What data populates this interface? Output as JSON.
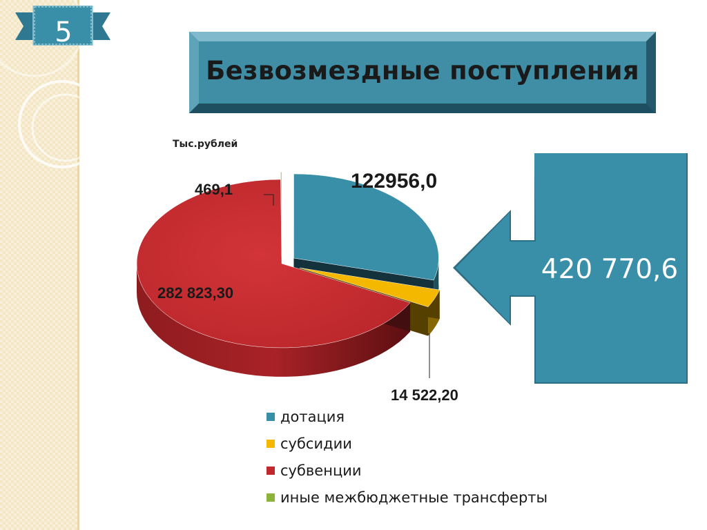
{
  "slide": {
    "number": "5",
    "title": "Безвозмездные  поступления",
    "units": "Тыс.рублей",
    "total": "420 770,6"
  },
  "colors": {
    "ribbon": "#3a8fa8",
    "title_box": "#3f8ea6",
    "arrow": "#3a8fa8"
  },
  "chart_data": {
    "type": "pie",
    "title": "",
    "units": "Тыс.рублей",
    "legend_position": "bottom",
    "slices": [
      {
        "name": "дотация",
        "value": 122956.0,
        "label": "122956,0",
        "color": "#3a8fa8"
      },
      {
        "name": "субсидии",
        "value": 14522.2,
        "label": "14 522,20",
        "color": "#f5b800"
      },
      {
        "name": "субвенции",
        "value": 282823.3,
        "label": "282 823,30",
        "color": "#c0282d"
      },
      {
        "name": "иные межбюджетные трансферты",
        "value": 469.1,
        "label": "469,1",
        "color": "#8db43a"
      }
    ]
  }
}
